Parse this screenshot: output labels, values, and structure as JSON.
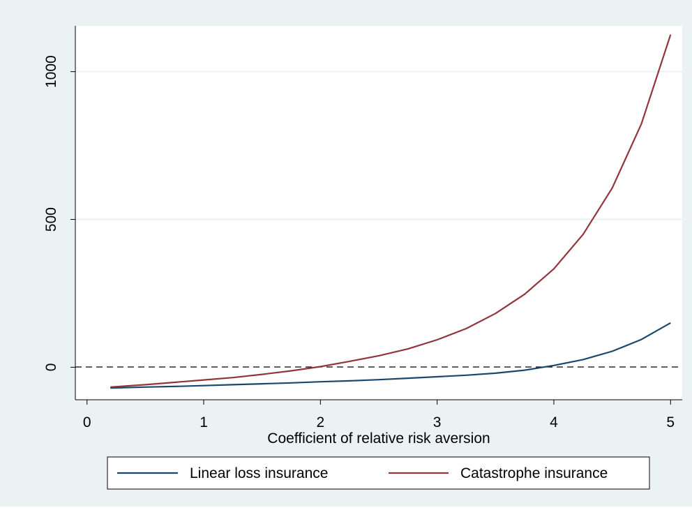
{
  "chart_data": {
    "type": "line",
    "xlabel": "Coefficient of relative risk aversion",
    "ylabel": "",
    "xlim": [
      -0.1,
      5.1
    ],
    "ylim": [
      -110,
      1155
    ],
    "xticks": [
      "0",
      "1",
      "2",
      "3",
      "4",
      "5"
    ],
    "yticks": [
      "0",
      "500",
      "1000"
    ],
    "x": [
      0.2,
      0.5,
      0.75,
      1.0,
      1.25,
      1.5,
      1.75,
      2.0,
      2.25,
      2.5,
      2.75,
      3.0,
      3.25,
      3.5,
      3.75,
      4.0,
      4.25,
      4.5,
      4.75,
      5.0
    ],
    "reference_line_y": 0,
    "grid": true,
    "legend_position": "bottom",
    "series": [
      {
        "name": "Linear loss insurance",
        "color": "#1a476f",
        "values": [
          -70,
          -67,
          -65,
          -62,
          -59,
          -56,
          -53,
          -49,
          -46,
          -42,
          -37,
          -32,
          -27,
          -20,
          -10,
          6,
          26,
          54,
          94,
          150
        ]
      },
      {
        "name": "Catastrophe insurance",
        "color": "#90353b",
        "values": [
          -67,
          -59,
          -51,
          -43,
          -35,
          -24,
          -12,
          2,
          20,
          39,
          62,
          93,
          131,
          182,
          247,
          333,
          449,
          606,
          823,
          1125
        ]
      }
    ]
  },
  "colors": {
    "background": "#eaf2f3",
    "plot_area": "#ffffff",
    "gridline": "#eaf2f3"
  }
}
